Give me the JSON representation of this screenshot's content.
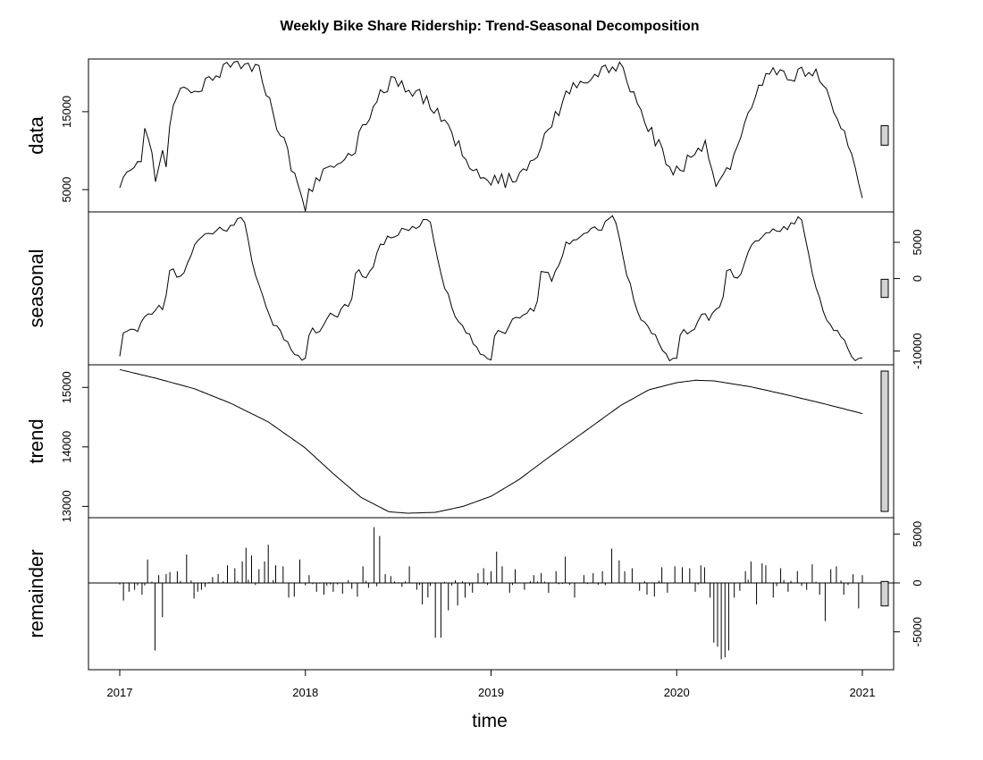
{
  "chart_data": {
    "type": "line",
    "title": "Weekly Bike Share Ridership: Trend-Seasonal Decomposition",
    "xlabel": "time",
    "xlim": [
      2017.0,
      2021.0
    ],
    "x_ticks": [
      "2017",
      "2018",
      "2019",
      "2020",
      "2021"
    ],
    "panels": [
      {
        "name": "data",
        "label": "data",
        "axis_side": "left",
        "ylim": [
          2600,
          21300
        ],
        "y_ticks": [
          5000,
          15000
        ],
        "y_tick_labels": [
          "5000",
          "15000"
        ],
        "knots": [
          [
            2017.0,
            5600
          ],
          [
            2017.04,
            7800
          ],
          [
            2017.08,
            8000
          ],
          [
            2017.12,
            9300
          ],
          [
            2017.14,
            13000
          ],
          [
            2017.18,
            8600
          ],
          [
            2017.2,
            3700
          ],
          [
            2017.22,
            10000
          ],
          [
            2017.25,
            8200
          ],
          [
            2017.29,
            16800
          ],
          [
            2017.35,
            18500
          ],
          [
            2017.42,
            17500
          ],
          [
            2017.5,
            19600
          ],
          [
            2017.58,
            20500
          ],
          [
            2017.65,
            21000
          ],
          [
            2017.75,
            20800
          ],
          [
            2017.8,
            17000
          ],
          [
            2017.86,
            12500
          ],
          [
            2017.92,
            8500
          ],
          [
            2017.97,
            5500
          ],
          [
            2018.0,
            2800
          ],
          [
            2018.05,
            6500
          ],
          [
            2018.1,
            7200
          ],
          [
            2018.15,
            7800
          ],
          [
            2018.2,
            8300
          ],
          [
            2018.26,
            10000
          ],
          [
            2018.32,
            13500
          ],
          [
            2018.4,
            17600
          ],
          [
            2018.48,
            19000
          ],
          [
            2018.55,
            18200
          ],
          [
            2018.62,
            17000
          ],
          [
            2018.7,
            15000
          ],
          [
            2018.78,
            12500
          ],
          [
            2018.85,
            9500
          ],
          [
            2018.92,
            7500
          ],
          [
            2018.97,
            5500
          ],
          [
            2019.02,
            6500
          ],
          [
            2019.07,
            6000
          ],
          [
            2019.13,
            6800
          ],
          [
            2019.18,
            7000
          ],
          [
            2019.25,
            9800
          ],
          [
            2019.32,
            13000
          ],
          [
            2019.4,
            17000
          ],
          [
            2019.48,
            19000
          ],
          [
            2019.55,
            19800
          ],
          [
            2019.62,
            20300
          ],
          [
            2019.68,
            21000
          ],
          [
            2019.72,
            19500
          ],
          [
            2019.78,
            16800
          ],
          [
            2019.85,
            13000
          ],
          [
            2019.92,
            9800
          ],
          [
            2019.97,
            7000
          ],
          [
            2020.02,
            7500
          ],
          [
            2020.06,
            8800
          ],
          [
            2020.12,
            9500
          ],
          [
            2020.16,
            11500
          ],
          [
            2020.2,
            6000
          ],
          [
            2020.25,
            7000
          ],
          [
            2020.32,
            9500
          ],
          [
            2020.38,
            14000
          ],
          [
            2020.44,
            18500
          ],
          [
            2020.5,
            20500
          ],
          [
            2020.56,
            20300
          ],
          [
            2020.62,
            19500
          ],
          [
            2020.7,
            20200
          ],
          [
            2020.78,
            19200
          ],
          [
            2020.84,
            15500
          ],
          [
            2020.9,
            12000
          ],
          [
            2020.95,
            8500
          ],
          [
            2021.0,
            4500
          ]
        ]
      },
      {
        "name": "seasonal",
        "label": "seasonal",
        "axis_side": "right",
        "ylim": [
          -11400,
          8700
        ],
        "y_ticks": [
          -10000,
          0,
          5000
        ],
        "y_tick_labels": [
          "-10000",
          "0",
          "5000"
        ],
        "knots": [
          [
            0.0,
            -11000
          ],
          [
            0.02,
            -7800
          ],
          [
            0.04,
            -7000
          ],
          [
            0.07,
            -7300
          ],
          [
            0.1,
            -6800
          ],
          [
            0.12,
            -5500
          ],
          [
            0.14,
            -4800
          ],
          [
            0.18,
            -5500
          ],
          [
            0.2,
            -3800
          ],
          [
            0.23,
            -4300
          ],
          [
            0.25,
            -2700
          ],
          [
            0.27,
            1100
          ],
          [
            0.29,
            1300
          ],
          [
            0.33,
            -200
          ],
          [
            0.36,
            1600
          ],
          [
            0.4,
            4500
          ],
          [
            0.45,
            5700
          ],
          [
            0.5,
            6200
          ],
          [
            0.55,
            7000
          ],
          [
            0.58,
            6800
          ],
          [
            0.62,
            7600
          ],
          [
            0.65,
            8400
          ],
          [
            0.68,
            7600
          ],
          [
            0.7,
            4000
          ],
          [
            0.75,
            -1000
          ],
          [
            0.8,
            -5000
          ],
          [
            0.85,
            -7000
          ],
          [
            0.9,
            -8500
          ],
          [
            0.94,
            -10500
          ],
          [
            0.96,
            -11000
          ],
          [
            1.0,
            -11000
          ]
        ]
      },
      {
        "name": "trend",
        "label": "trend",
        "axis_side": "left",
        "ylim": [
          12870,
          15320
        ],
        "y_ticks": [
          13000,
          14000,
          15000
        ],
        "y_tick_labels": [
          "13000",
          "14000",
          "15000"
        ],
        "knots": [
          [
            2017.0,
            15300
          ],
          [
            2017.2,
            15150
          ],
          [
            2017.4,
            14980
          ],
          [
            2017.6,
            14730
          ],
          [
            2017.8,
            14420
          ],
          [
            2018.0,
            13980
          ],
          [
            2018.15,
            13550
          ],
          [
            2018.3,
            13150
          ],
          [
            2018.45,
            12910
          ],
          [
            2018.55,
            12885
          ],
          [
            2018.7,
            12900
          ],
          [
            2018.85,
            13000
          ],
          [
            2019.0,
            13170
          ],
          [
            2019.15,
            13450
          ],
          [
            2019.3,
            13800
          ],
          [
            2019.5,
            14250
          ],
          [
            2019.7,
            14700
          ],
          [
            2019.85,
            14960
          ],
          [
            2020.0,
            15080
          ],
          [
            2020.1,
            15120
          ],
          [
            2020.2,
            15110
          ],
          [
            2020.4,
            15010
          ],
          [
            2020.6,
            14870
          ],
          [
            2020.8,
            14720
          ],
          [
            2021.0,
            14560
          ]
        ]
      },
      {
        "name": "remainder",
        "label": "remainder",
        "axis_side": "right",
        "ylim": [
          -8500,
          6300
        ],
        "y_ticks": [
          -5000,
          0,
          5000
        ],
        "y_tick_labels": [
          "-5000",
          "0",
          "5000"
        ],
        "spikes": [
          [
            2017.02,
            -1800
          ],
          [
            2017.05,
            -900
          ],
          [
            2017.08,
            -700
          ],
          [
            2017.12,
            -1200
          ],
          [
            2017.15,
            2400
          ],
          [
            2017.19,
            -6900
          ],
          [
            2017.21,
            800
          ],
          [
            2017.23,
            -3500
          ],
          [
            2017.25,
            900
          ],
          [
            2017.27,
            1100
          ],
          [
            2017.31,
            1200
          ],
          [
            2017.36,
            2900
          ],
          [
            2017.4,
            -1600
          ],
          [
            2017.42,
            -900
          ],
          [
            2017.44,
            -700
          ],
          [
            2017.46,
            -400
          ],
          [
            2017.5,
            600
          ],
          [
            2017.53,
            900
          ],
          [
            2017.58,
            1800
          ],
          [
            2017.62,
            1500
          ],
          [
            2017.66,
            2200
          ],
          [
            2017.68,
            3600
          ],
          [
            2017.71,
            2800
          ],
          [
            2017.75,
            1400
          ],
          [
            2017.78,
            2200
          ],
          [
            2017.8,
            3900
          ],
          [
            2017.84,
            1800
          ],
          [
            2017.88,
            1700
          ],
          [
            2017.91,
            -1500
          ],
          [
            2017.94,
            -1400
          ],
          [
            2017.97,
            2400
          ],
          [
            2018.02,
            800
          ],
          [
            2018.06,
            -900
          ],
          [
            2018.1,
            -1200
          ],
          [
            2018.15,
            -900
          ],
          [
            2018.2,
            -1100
          ],
          [
            2018.25,
            -600
          ],
          [
            2018.28,
            -1400
          ],
          [
            2018.31,
            1700
          ],
          [
            2018.34,
            -500
          ],
          [
            2018.37,
            5700
          ],
          [
            2018.4,
            4800
          ],
          [
            2018.43,
            900
          ],
          [
            2018.46,
            700
          ],
          [
            2018.52,
            -400
          ],
          [
            2018.56,
            1700
          ],
          [
            2018.6,
            -700
          ],
          [
            2018.63,
            -2200
          ],
          [
            2018.66,
            -1500
          ],
          [
            2018.7,
            -5600
          ],
          [
            2018.73,
            -5600
          ],
          [
            2018.77,
            -2800
          ],
          [
            2018.82,
            -2300
          ],
          [
            2018.86,
            -1500
          ],
          [
            2018.9,
            -1000
          ],
          [
            2018.93,
            1000
          ],
          [
            2018.96,
            1500
          ],
          [
            2019.0,
            1200
          ],
          [
            2019.03,
            3200
          ],
          [
            2019.06,
            1700
          ],
          [
            2019.1,
            -1000
          ],
          [
            2019.13,
            1400
          ],
          [
            2019.18,
            -700
          ],
          [
            2019.23,
            800
          ],
          [
            2019.27,
            1000
          ],
          [
            2019.31,
            -1000
          ],
          [
            2019.35,
            1200
          ],
          [
            2019.4,
            2700
          ],
          [
            2019.45,
            -1500
          ],
          [
            2019.5,
            800
          ],
          [
            2019.55,
            1000
          ],
          [
            2019.6,
            1200
          ],
          [
            2019.65,
            3500
          ],
          [
            2019.69,
            2300
          ],
          [
            2019.72,
            1200
          ],
          [
            2019.76,
            1500
          ],
          [
            2019.8,
            -800
          ],
          [
            2019.84,
            -1200
          ],
          [
            2019.88,
            -1400
          ],
          [
            2019.92,
            1600
          ],
          [
            2019.95,
            -1000
          ],
          [
            2019.99,
            1700
          ],
          [
            2020.03,
            1600
          ],
          [
            2020.07,
            1500
          ],
          [
            2020.1,
            -900
          ],
          [
            2020.13,
            1800
          ],
          [
            2020.15,
            1600
          ],
          [
            2020.18,
            -1500
          ],
          [
            2020.2,
            -6100
          ],
          [
            2020.22,
            -6500
          ],
          [
            2020.24,
            -7800
          ],
          [
            2020.26,
            -7600
          ],
          [
            2020.28,
            -6900
          ],
          [
            2020.31,
            -1500
          ],
          [
            2020.34,
            -800
          ],
          [
            2020.37,
            1200
          ],
          [
            2020.4,
            2200
          ],
          [
            2020.43,
            -2200
          ],
          [
            2020.46,
            2000
          ],
          [
            2020.48,
            1800
          ],
          [
            2020.52,
            -1500
          ],
          [
            2020.56,
            1500
          ],
          [
            2020.6,
            -900
          ],
          [
            2020.65,
            1200
          ],
          [
            2020.7,
            -700
          ],
          [
            2020.73,
            1900
          ],
          [
            2020.77,
            -1200
          ],
          [
            2020.8,
            -3900
          ],
          [
            2020.83,
            1400
          ],
          [
            2020.86,
            1700
          ],
          [
            2020.9,
            -1200
          ],
          [
            2020.95,
            900
          ],
          [
            2020.98,
            -2600
          ],
          [
            2021.0,
            800
          ]
        ]
      }
    ],
    "scale_bar_range": 2500
  }
}
